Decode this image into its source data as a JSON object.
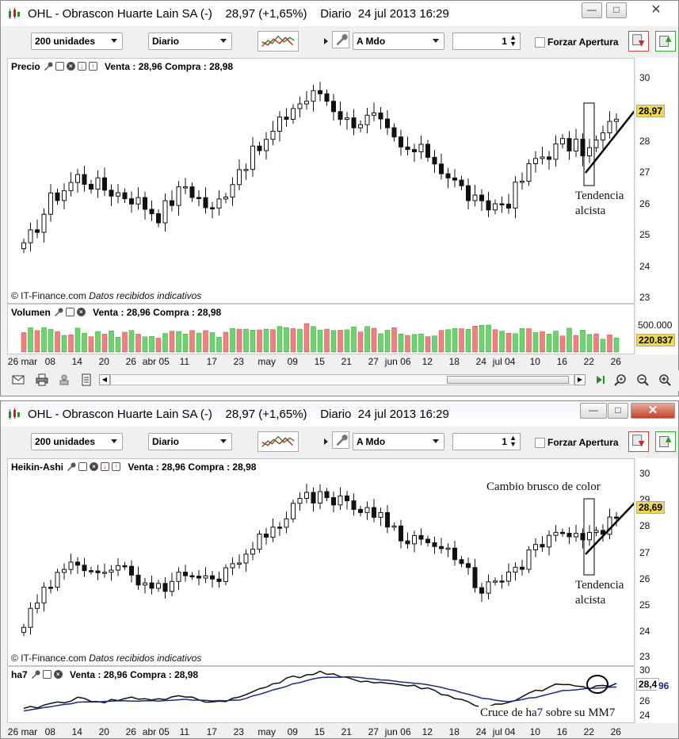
{
  "window1": {
    "title": "OHL - Obrascon Huarte Lain SA (-)",
    "price": "28,97 (+1,65%)",
    "period": "Diario",
    "datetime": "24 jul 2013 16:29",
    "toolbar": {
      "units": "200 unidades",
      "period": "Diario",
      "order": "A Mdo",
      "qty": "1",
      "forzar": "Forzar Apertura"
    },
    "pane1": {
      "name": "Precio",
      "quote": "Venta : 28,96 Compra : 28,98",
      "footer_copy": "© IT-Finance.com",
      "footer_note": "Datos recibidos indicativos"
    },
    "pane2": {
      "name": "Volumen",
      "quote": "Venta : 28,96 Compra : 28,98"
    },
    "price_axis": [
      "30",
      "29",
      "28",
      "27",
      "26",
      "25",
      "24",
      "23"
    ],
    "price_tag": "28,97",
    "volume_axis": "500.000",
    "volume_tag": "220.837",
    "annotation": [
      "Tendencia",
      "alcista"
    ]
  },
  "window2": {
    "title": "OHL - Obrascon Huarte Lain SA (-)",
    "price": "28,97 (+1,65%)",
    "period": "Diario",
    "datetime": "24 jul 2013 16:29",
    "toolbar": {
      "units": "200 unidades",
      "period": "Diario",
      "order": "A Mdo",
      "qty": "1",
      "forzar": "Forzar Apertura"
    },
    "pane1": {
      "name": "Heikin-Ashi",
      "quote": "Venta : 28,96 Compra : 28,98",
      "footer_copy": "© IT-Finance.com",
      "footer_note": "Datos recibidos indicativos"
    },
    "pane2": {
      "name": "ha7",
      "quote": "Venta : 28,96 Compra : 28,98"
    },
    "price_axis": [
      "30",
      "29",
      "28",
      "27",
      "26",
      "25",
      "24",
      "23"
    ],
    "price_tag": "28,69",
    "ind_axis": [
      "30",
      "28",
      "26",
      "24"
    ],
    "ind_tag_a": "28,4",
    "ind_tag_b": "96",
    "annotation_top": "Cambio brusco de color",
    "annotation": [
      "Tendencia",
      "alcista"
    ],
    "annotation_bottom": "Cruce de ha7 sobre su MM7"
  },
  "x_axis": [
    "26 mar",
    "08",
    "14",
    "20",
    "26",
    "abr 05",
    "11",
    "17",
    "23",
    "may",
    "09",
    "15",
    "21",
    "27",
    "jun 06",
    "12",
    "18",
    "24",
    "jul 04",
    "10",
    "16",
    "22",
    "26"
  ],
  "chart_data": [
    {
      "type": "candlestick",
      "title": "Precio",
      "ylim": [
        23,
        30.5
      ],
      "x": [
        "26 mar",
        "08",
        "14",
        "20",
        "26",
        "abr 05",
        "11",
        "17",
        "23",
        "may",
        "09",
        "15",
        "21",
        "27",
        "jun 06",
        "12",
        "18",
        "24",
        "jul 04",
        "10",
        "16",
        "22",
        "26"
      ],
      "close": [
        24.5,
        26.2,
        27.0,
        26.6,
        26.3,
        25.7,
        26.7,
        25.8,
        27.3,
        28.2,
        29.4,
        29.9,
        28.9,
        29.0,
        27.9,
        27.8,
        26.8,
        25.9,
        26.2,
        27.6,
        28.1,
        27.9,
        28.97
      ]
    },
    {
      "type": "bar",
      "title": "Volumen",
      "ylim": [
        0,
        700000
      ],
      "values": [
        320000,
        350000,
        310000,
        280000,
        300000,
        260000,
        290000,
        270000,
        330000,
        300000,
        420000,
        390000,
        340000,
        360000,
        310000,
        300000,
        330000,
        390000,
        350000,
        320000,
        310000,
        300000,
        220837
      ]
    },
    {
      "type": "candlestick",
      "title": "Heikin-Ashi",
      "ylim": [
        23,
        30.5
      ],
      "close": [
        24.3,
        26.0,
        26.9,
        26.6,
        26.4,
        25.8,
        26.4,
        26.1,
        27.1,
        28.0,
        29.2,
        29.7,
        29.2,
        29.0,
        28.0,
        27.7,
        27.0,
        25.8,
        26.2,
        27.5,
        28.0,
        27.8,
        28.69
      ]
    },
    {
      "type": "line",
      "title": "ha7",
      "ylim": [
        23.5,
        30
      ],
      "series": [
        {
          "values": [
            24.8,
            25.6,
            26.3,
            25.9,
            26.4,
            26.2,
            26.6,
            25.8,
            26.4,
            28.1,
            29.2,
            29.9,
            29.0,
            28.6,
            28.2,
            27.7,
            26.4,
            25.2,
            25.6,
            27.3,
            28.3,
            27.7,
            28.4
          ]
        },
        {
          "values": [
            24.6,
            25.2,
            25.8,
            25.9,
            26.0,
            26.0,
            26.2,
            26.0,
            26.1,
            27.2,
            28.3,
            29.2,
            29.3,
            29.0,
            28.6,
            28.2,
            27.4,
            26.4,
            25.9,
            26.5,
            27.4,
            27.7,
            27.9
          ]
        }
      ]
    }
  ]
}
